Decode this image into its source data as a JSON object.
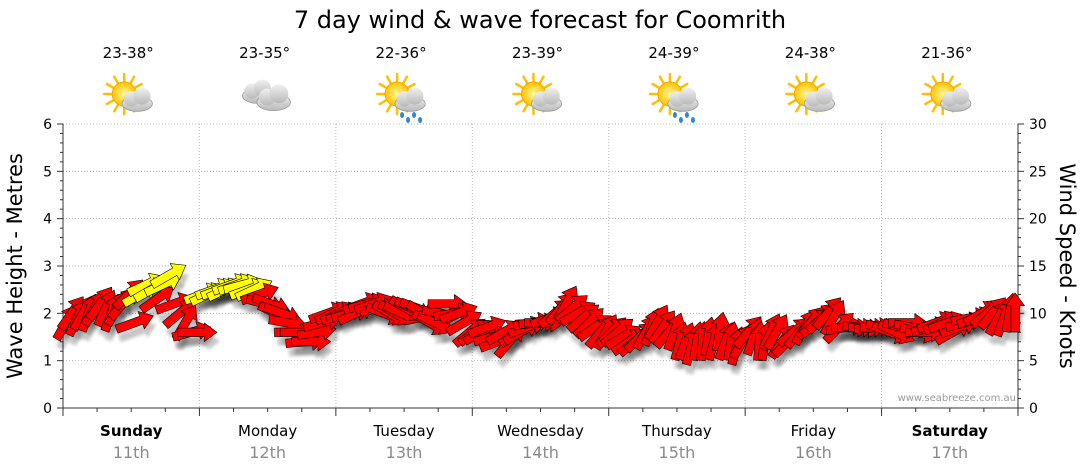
{
  "chart_data": {
    "type": "line",
    "title": "7 day wind & wave forecast for Coomrith",
    "ylabel_left": "Wave Height - Metres",
    "ylabel_right": "Wind Speed - Knots",
    "ylim_left": [
      0,
      6
    ],
    "ylim_right": [
      0,
      30
    ],
    "yticks_left": [
      "0",
      "1",
      "2",
      "3",
      "4",
      "5",
      "6"
    ],
    "yticks_right": [
      "0",
      "5",
      "10",
      "15",
      "20",
      "25",
      "30"
    ],
    "grid": true,
    "watermark": "www.seabreeze.com.au",
    "days": [
      {
        "name": "Sunday",
        "date": "11th",
        "temp": "23-38°",
        "icon": "partly-cloudy-icon",
        "bold": true
      },
      {
        "name": "Monday",
        "date": "12th",
        "temp": "23-35°",
        "icon": "cloudy-icon",
        "bold": false
      },
      {
        "name": "Tuesday",
        "date": "13th",
        "temp": "22-36°",
        "icon": "sun-rain-icon",
        "bold": false
      },
      {
        "name": "Wednesday",
        "date": "14th",
        "temp": "23-39°",
        "icon": "partly-cloudy-icon",
        "bold": false
      },
      {
        "name": "Thursday",
        "date": "15th",
        "temp": "24-39°",
        "icon": "sun-rain-icon",
        "bold": false
      },
      {
        "name": "Friday",
        "date": "16th",
        "temp": "24-38°",
        "icon": "partly-cloudy-icon",
        "bold": false
      },
      {
        "name": "Saturday",
        "date": "17th",
        "temp": "21-36°",
        "icon": "partly-cloudy-icon",
        "bold": true
      }
    ],
    "series": [
      {
        "name": "Wind Speed - Knots",
        "colors": {
          "strong": "#ff0000",
          "light": "#ffff00",
          "outline": "#000000"
        },
        "samples_per_day": 12,
        "values": [
          9,
          10,
          9.5,
          10,
          10,
          10.5,
          11,
          10.5,
          10,
          10.5,
          11,
          12,
          9,
          12,
          13,
          12.5,
          11.5,
          13,
          14,
          11,
          10,
          9,
          8,
          8,
          12,
          12,
          12.5,
          12.5,
          12.5,
          13,
          13,
          13,
          12.5,
          12.5,
          12,
          11,
          11,
          10,
          10,
          9,
          8,
          8,
          7,
          7,
          8,
          9,
          10,
          10,
          10,
          10,
          10,
          10,
          11,
          11,
          11,
          10.5,
          10,
          10,
          10,
          10,
          10.5,
          10.5,
          10.5,
          10,
          9,
          9,
          10,
          11,
          10,
          10,
          9,
          8,
          8,
          8,
          8.5,
          7.5,
          7,
          8,
          7,
          8,
          8,
          8.5,
          9,
          9,
          9,
          9.5,
          10,
          10.5,
          11,
          10.5,
          10,
          9.5,
          9,
          8.5,
          8,
          8,
          8,
          8,
          7.5,
          7,
          7,
          7.5,
          8,
          8.5,
          9,
          8.5,
          8,
          8,
          7,
          7,
          6.5,
          7,
          7,
          7.5,
          7,
          8,
          7,
          7,
          6.5,
          7,
          8,
          7.5,
          7,
          7,
          8,
          8,
          7,
          7,
          8,
          8,
          8.5,
          9,
          9,
          9.5,
          10,
          9.5,
          8.5,
          8.5,
          8.5,
          8.5,
          8.5,
          8.5,
          8.5,
          8.5,
          8.5,
          8,
          8,
          8.5,
          9,
          8.5,
          8,
          8,
          8.5,
          9,
          9,
          9,
          8,
          8.5,
          9,
          9.5,
          9.5,
          10,
          10,
          10,
          9.5,
          9.5,
          10,
          10
        ],
        "directions_deg": [
          60,
          55,
          65,
          60,
          70,
          60,
          55,
          65,
          70,
          60,
          50,
          45,
          20,
          30,
          25,
          30,
          35,
          25,
          30,
          20,
          40,
          60,
          15,
          0,
          20,
          25,
          20,
          20,
          25,
          20,
          20,
          15,
          20,
          25,
          20,
          -15,
          -20,
          -25,
          -20,
          -10,
          0,
          0,
          5,
          0,
          10,
          15,
          20,
          25,
          25,
          20,
          15,
          25,
          20,
          15,
          20,
          10,
          -20,
          -30,
          -30,
          -25,
          -30,
          -25,
          -20,
          -30,
          -30,
          -25,
          -10,
          0,
          10,
          20,
          30,
          40,
          35,
          30,
          20,
          15,
          20,
          30,
          50,
          40,
          30,
          20,
          10,
          5,
          0,
          20,
          40,
          50,
          60,
          40,
          30,
          40,
          45,
          35,
          50,
          60,
          45,
          40,
          30,
          35,
          40,
          45,
          60,
          70,
          60,
          55,
          50,
          70,
          75,
          70,
          75,
          80,
          85,
          80,
          75,
          80,
          70,
          80,
          75,
          60,
          50,
          70,
          85,
          80,
          65,
          60,
          55,
          45,
          40,
          50,
          60,
          50,
          40,
          45,
          50,
          60,
          45,
          10,
          0,
          0,
          -5,
          0,
          5,
          0,
          -10,
          -20,
          -25,
          -15,
          0,
          -10,
          -15,
          0,
          15,
          20,
          25,
          20,
          30,
          20,
          15,
          10,
          20,
          30,
          40,
          50,
          60,
          70,
          80,
          90
        ]
      }
    ]
  }
}
